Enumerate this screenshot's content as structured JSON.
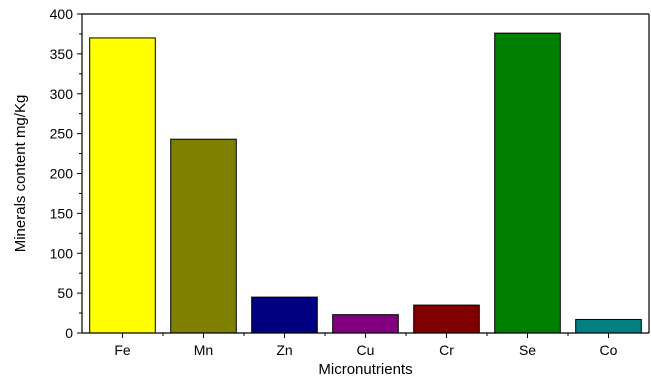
{
  "chart_data": {
    "type": "bar",
    "xlabel": "Micronutrients",
    "ylabel": "Minerals content mg/Kg",
    "ylim": [
      0,
      400
    ],
    "yticks": [
      0,
      50,
      100,
      150,
      200,
      250,
      300,
      350,
      400
    ],
    "grid": false,
    "categories": [
      "Fe",
      "Mn",
      "Zn",
      "Cu",
      "Cr",
      "Se",
      "Co"
    ],
    "values": [
      370,
      243,
      45,
      23,
      35,
      376,
      17
    ],
    "colors": [
      "#FFFF00",
      "#808000",
      "#000080",
      "#800080",
      "#800000",
      "#008000",
      "#008080"
    ]
  }
}
